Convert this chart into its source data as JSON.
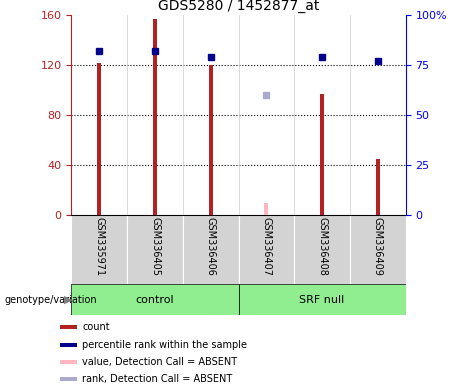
{
  "title": "GDS5280 / 1452877_at",
  "samples": [
    "GSM335971",
    "GSM336405",
    "GSM336406",
    "GSM336407",
    "GSM336408",
    "GSM336409"
  ],
  "counts": [
    122,
    157,
    120,
    null,
    97,
    45
  ],
  "counts_absent": [
    null,
    null,
    null,
    10,
    null,
    null
  ],
  "ranks": [
    82,
    82,
    79,
    null,
    79,
    77
  ],
  "ranks_absent": [
    null,
    null,
    null,
    60,
    null,
    null
  ],
  "bar_color": "#B22222",
  "bar_absent_color": "#FFB6C1",
  "square_color": "#00008B",
  "square_absent_color": "#AAAACC",
  "ylim_left": [
    0,
    160
  ],
  "ylim_right": [
    0,
    100
  ],
  "yticks_left": [
    0,
    40,
    80,
    120,
    160
  ],
  "yticks_right": [
    0,
    25,
    50,
    75,
    100
  ],
  "ytick_labels_left": [
    "0",
    "40",
    "80",
    "120",
    "160"
  ],
  "ytick_labels_right": [
    "0",
    "25",
    "50",
    "75",
    "100%"
  ],
  "bar_width": 0.07,
  "bg_plot": "#FFFFFF",
  "bg_tick_area": "#D3D3D3",
  "bg_group_area": "#90EE90",
  "legend_items": [
    {
      "label": "count",
      "color": "#B22222"
    },
    {
      "label": "percentile rank within the sample",
      "color": "#00008B"
    },
    {
      "label": "value, Detection Call = ABSENT",
      "color": "#FFB6C1"
    },
    {
      "label": "rank, Detection Call = ABSENT",
      "color": "#AAAACC"
    }
  ]
}
